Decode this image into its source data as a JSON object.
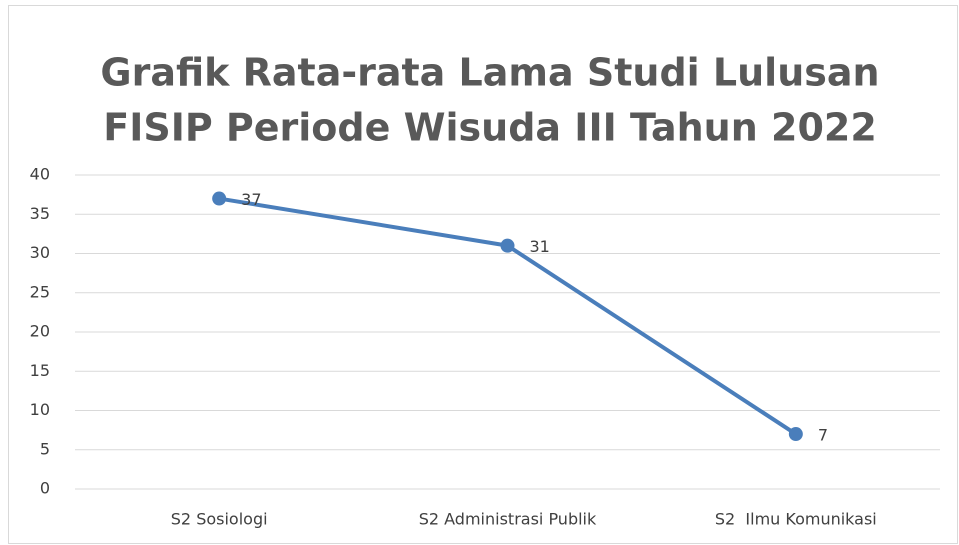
{
  "chart_data": {
    "type": "line",
    "title": [
      "Grafik Rata-rata Lama Studi Lulusan",
      "FISIP Periode Wisuda III Tahun 2022"
    ],
    "categories": [
      "S2 Sosiologi",
      "S2 Administrasi Publik",
      "S2  Ilmu Komunikasi"
    ],
    "values": [
      37,
      31,
      7
    ],
    "color": "#4a7ebb",
    "ylim": [
      0,
      40
    ],
    "yticks": [
      0,
      5,
      10,
      15,
      20,
      25,
      30,
      35,
      40
    ],
    "grid": true,
    "data_labels": true
  }
}
